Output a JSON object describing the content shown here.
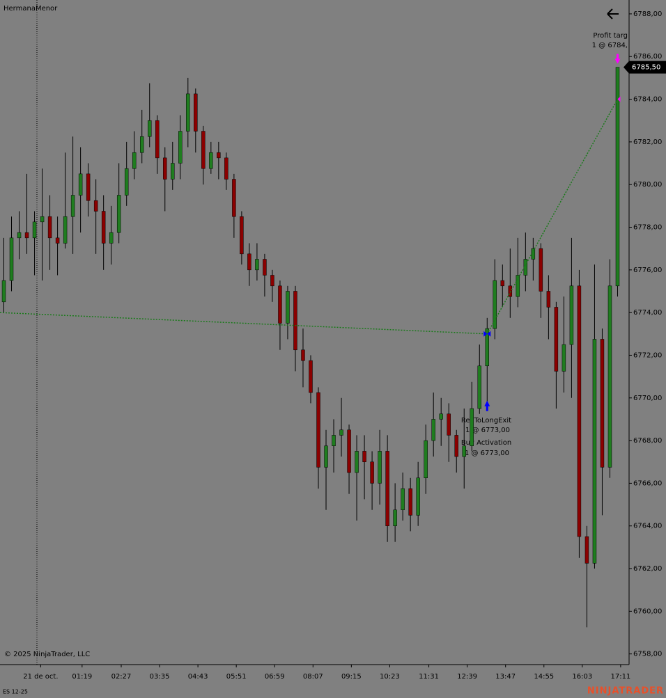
{
  "chart_data": {
    "type": "candlestick",
    "title": "HermanaMenor",
    "instrument": "ES 12-25",
    "copyright": "© 2025 NinjaTrader, LLC",
    "brand": "NINJATRADER",
    "up_color": "#1f7d1f",
    "down_color": "#8b0000",
    "wick_color": "#000000",
    "line_color": "#1a7a1a",
    "xlim": [
      -0.5,
      81.5
    ],
    "xticks": [
      {
        "value": 4.8,
        "label": "21 de oct."
      },
      {
        "value": 10.2,
        "label": "01:19"
      },
      {
        "value": 15.3,
        "label": "02:27"
      },
      {
        "value": 20.3,
        "label": "03:35"
      },
      {
        "value": 25.3,
        "label": "04:43"
      },
      {
        "value": 30.3,
        "label": "05:51"
      },
      {
        "value": 35.3,
        "label": "06:59"
      },
      {
        "value": 40.3,
        "label": "08:07"
      },
      {
        "value": 45.3,
        "label": "09:15"
      },
      {
        "value": 50.3,
        "label": "10:23"
      },
      {
        "value": 55.4,
        "label": "11:31"
      },
      {
        "value": 60.4,
        "label": "12:39"
      },
      {
        "value": 65.4,
        "label": "13:47"
      },
      {
        "value": 70.4,
        "label": "14:55"
      },
      {
        "value": 75.4,
        "label": "16:03"
      },
      {
        "value": 80.4,
        "label": "17:11"
      }
    ],
    "ylim": [
      6757.5,
      6788.65
    ],
    "yticks": [
      {
        "value": 6758,
        "label": "6758,00"
      },
      {
        "value": 6760,
        "label": "6760,00"
      },
      {
        "value": 6762,
        "label": "6762,00"
      },
      {
        "value": 6764,
        "label": "6764,00"
      },
      {
        "value": 6766,
        "label": "6766,00"
      },
      {
        "value": 6768,
        "label": "6768,00"
      },
      {
        "value": 6770,
        "label": "6770,00"
      },
      {
        "value": 6772,
        "label": "6772,00"
      },
      {
        "value": 6774,
        "label": "6774,00"
      },
      {
        "value": 6776,
        "label": "6776,00"
      },
      {
        "value": 6778,
        "label": "6778,00"
      },
      {
        "value": 6780,
        "label": "6780,00"
      },
      {
        "value": 6782,
        "label": "6782,00"
      },
      {
        "value": 6784,
        "label": "6784,00"
      },
      {
        "value": 6786,
        "label": "6786,00"
      },
      {
        "value": 6788,
        "label": "6788,00"
      }
    ],
    "last_price": {
      "value": 6785.5,
      "label": "6785,50"
    },
    "open": [
      6774.5,
      6775.5,
      6777.5,
      6777.75,
      6777.5,
      6778.25,
      6778.5,
      6777.5,
      6777.25,
      6778.5,
      6779.5,
      6780.5,
      6779.25,
      6778.75,
      6777.25,
      6777.75,
      6779.5,
      6780.75,
      6781.5,
      6782.25,
      6783,
      6781.25,
      6780.25,
      6781,
      6782.5,
      6784.25,
      6782.5,
      6780.75,
      6781.5,
      6781.25,
      6780.25,
      6778.5,
      6776.75,
      6776,
      6776.5,
      6775.75,
      6775.25,
      6773.5,
      6775,
      6772.25,
      6771.75,
      6770.25,
      6766.75,
      6767.75,
      6768.25,
      6768.5,
      6766.5,
      6767.5,
      6767,
      6766,
      6767.5,
      6764,
      6764.75,
      6765.75,
      6764.5,
      6766.25,
      6768,
      6769,
      6769.25,
      6768.25,
      6767.25,
      6767.75,
      6769.5,
      6771.5,
      6773.25,
      6775.5,
      6775.25,
      6774.75,
      6775.75,
      6776.5,
      6777,
      6775,
      6774.25,
      6771.25,
      6772.5,
      6775.25,
      6763.5,
      6762.25,
      6772.75,
      6766.75,
      6775.25
    ],
    "high": [
      6777.5,
      6778.5,
      6778.75,
      6780.5,
      6778.75,
      6780.75,
      6779.5,
      6778.5,
      6781.5,
      6782.25,
      6781.75,
      6781,
      6780.25,
      6779.5,
      6779,
      6781,
      6782,
      6782.5,
      6783.5,
      6784.75,
      6783.25,
      6781.75,
      6782,
      6783.25,
      6785,
      6784.5,
      6782.75,
      6782,
      6782,
      6781.5,
      6780.5,
      6778.75,
      6777.25,
      6777.25,
      6776.75,
      6776,
      6775.5,
      6775.25,
      6775.25,
      6773.25,
      6772,
      6770.5,
      6768.5,
      6769,
      6770,
      6768.75,
      6768.25,
      6768.25,
      6767.5,
      6768.5,
      6768.25,
      6766,
      6766.5,
      6766.25,
      6767,
      6768.75,
      6770.25,
      6770,
      6769.75,
      6768.5,
      6769.5,
      6770.75,
      6772.5,
      6773.75,
      6776.5,
      6776.25,
      6777,
      6777.5,
      6777.75,
      6777.5,
      6777.25,
      6775.75,
      6774.5,
      6774.75,
      6777.5,
      6776,
      6764,
      6776.25,
      6773.25,
      6776.5,
      6785.5
    ],
    "low": [
      6774,
      6775,
      6776.5,
      6776.75,
      6775.75,
      6775.5,
      6776,
      6775.75,
      6777,
      6776.75,
      6777.75,
      6778.5,
      6776.75,
      6776,
      6776.25,
      6777.25,
      6779,
      6780.25,
      6781,
      6781.75,
      6780.5,
      6778.75,
      6779.75,
      6780.25,
      6781.75,
      6781.5,
      6780,
      6780.5,
      6780.25,
      6779.75,
      6777.5,
      6776.25,
      6775.25,
      6775.5,
      6774.75,
      6774.5,
      6772.25,
      6772.75,
      6771.25,
      6770.5,
      6769.75,
      6765.75,
      6764.75,
      6766.5,
      6767.25,
      6765.5,
      6764.25,
      6765.25,
      6764.75,
      6765,
      6763.25,
      6763.25,
      6764.25,
      6763.75,
      6764,
      6765.5,
      6767.25,
      6767.75,
      6767,
      6766.5,
      6765.75,
      6767.5,
      6769.25,
      6769.75,
      6772.75,
      6774.25,
      6773.75,
      6774.25,
      6775,
      6775.5,
      6773.75,
      6772.75,
      6769.5,
      6770.25,
      6770,
      6762.5,
      6759.25,
      6762,
      6764.5,
      6766.25,
      6774.75
    ],
    "close": [
      6775.5,
      6777.5,
      6777.75,
      6777.5,
      6778.25,
      6778.5,
      6777.5,
      6777.25,
      6778.5,
      6779.5,
      6780.5,
      6779.25,
      6778.75,
      6777.25,
      6777.75,
      6779.5,
      6780.75,
      6781.5,
      6782.25,
      6783,
      6781.25,
      6780.25,
      6781,
      6782.5,
      6784.25,
      6782.5,
      6780.75,
      6781.5,
      6781.25,
      6780.25,
      6778.5,
      6776.75,
      6776,
      6776.5,
      6775.75,
      6775.25,
      6773.5,
      6775,
      6772.25,
      6771.75,
      6770.25,
      6766.75,
      6767.75,
      6768.25,
      6768.5,
      6766.5,
      6767.5,
      6767,
      6766,
      6767.5,
      6764,
      6764.75,
      6765.75,
      6764.5,
      6766.25,
      6768,
      6769,
      6769.25,
      6768.25,
      6767.25,
      6767.75,
      6769.5,
      6771.5,
      6773.25,
      6775.5,
      6775.25,
      6774.75,
      6775.75,
      6776.5,
      6777,
      6775,
      6774.25,
      6771.25,
      6772.5,
      6775.25,
      6763.5,
      6762.25,
      6772.75,
      6766.75,
      6775.25,
      6785.5
    ],
    "trade_line": {
      "x": [
        -0.5,
        63,
        80
      ],
      "values": [
        6774,
        6773,
        6784
      ]
    },
    "annotations": [
      {
        "lines": [
          "Profit targ",
          "1 @ 6784,"
        ]
      },
      {
        "lines": [
          "RevToLongExit",
          "1 @ 6773,00"
        ]
      },
      {
        "lines": [
          "Buy Activation",
          "1 @ 6773,00"
        ]
      }
    ]
  }
}
